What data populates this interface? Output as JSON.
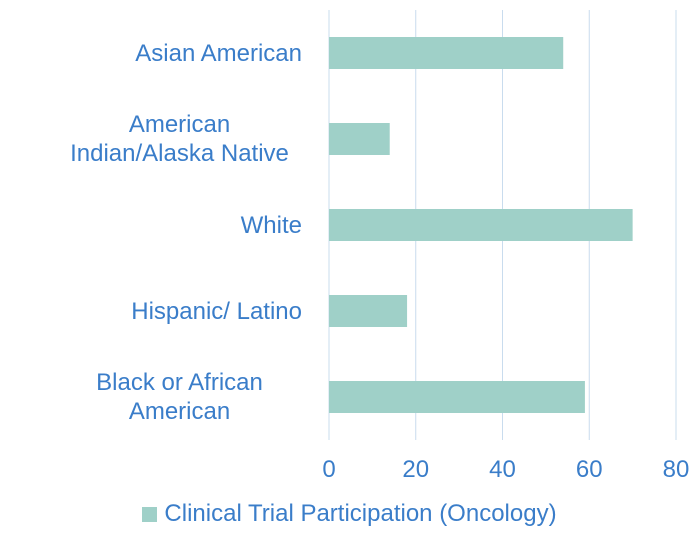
{
  "chart_data": {
    "type": "barh",
    "categories": [
      "Asian American",
      "American Indian/Alaska Native",
      "White",
      "Hispanic/ Latino",
      "Black or African American"
    ],
    "series": [
      {
        "name": "Clinical Trial Participation (Oncology)",
        "color": "#9fd0c8",
        "values": [
          54,
          14,
          70,
          18,
          59
        ]
      }
    ],
    "xlim": [
      0,
      80
    ],
    "xticks": [
      0,
      20,
      40,
      60,
      80
    ],
    "grid": true,
    "legend": "bottom"
  }
}
